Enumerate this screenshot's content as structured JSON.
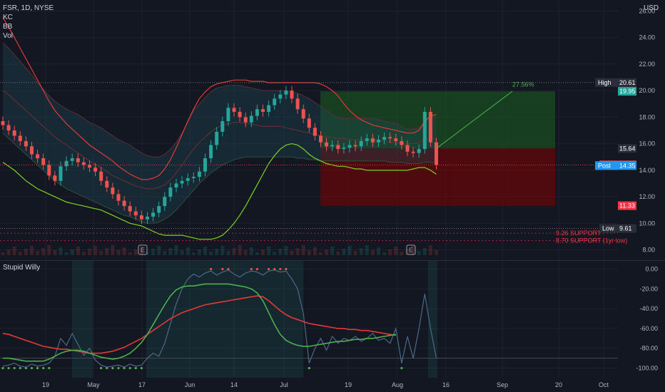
{
  "header": {
    "symbol_line": "FSR, 1D, NYSE",
    "indicators": [
      "KC",
      "BB",
      "Vol"
    ],
    "currency": "USD",
    "oscillator_title": "Stupid Willy"
  },
  "chart_data": [
    {
      "type": "candlestick",
      "title": "FSR, 1D, NYSE",
      "x_ticks": [
        "19",
        "May",
        "17",
        "Jun",
        "14",
        "Jul",
        "19",
        "Aug",
        "16",
        "Sep",
        "20",
        "Oct"
      ],
      "y_ticks": [
        8.0,
        10.0,
        12.0,
        14.0,
        16.0,
        18.0,
        20.0,
        22.0,
        24.0,
        26.0
      ],
      "y_tick_labels": [
        "8.00",
        "10.00",
        "12.00",
        "14.00",
        "16.00",
        "18.00",
        "20.00",
        "22.00",
        "24.00",
        "26.00"
      ],
      "ylim": [
        7.6,
        26.4
      ],
      "series": [
        {
          "name": "Close",
          "values": [
            17.4,
            17.0,
            16.6,
            16.2,
            15.8,
            15.2,
            14.9,
            14.4,
            13.6,
            13.2,
            14.3,
            14.7,
            14.9,
            14.6,
            14.4,
            14.2,
            13.9,
            13.2,
            12.7,
            12.2,
            11.7,
            11.3,
            10.9,
            10.6,
            10.3,
            10.5,
            10.8,
            11.3,
            12.0,
            12.7,
            13.0,
            13.2,
            13.4,
            13.5,
            13.9,
            14.9,
            15.9,
            16.9,
            17.7,
            18.7,
            18.4,
            18.0,
            17.6,
            18.1,
            18.6,
            18.4,
            18.9,
            19.4,
            19.7,
            20.0,
            19.4,
            18.6,
            17.9,
            17.2,
            16.6,
            16.1,
            15.8,
            15.9,
            15.6,
            15.7,
            15.9,
            15.8,
            16.2,
            16.4,
            16.1,
            16.3,
            16.5,
            16.4,
            16.2,
            15.9,
            15.4,
            15.3,
            15.6,
            18.4,
            16.1,
            14.4
          ]
        },
        {
          "name": "KC upper",
          "values": [
            23.6,
            23.2,
            22.7,
            22.2,
            21.7,
            21.2,
            20.6,
            20.1,
            19.6,
            19.2,
            18.9,
            18.6,
            18.4,
            18.2,
            17.9,
            17.6,
            17.4,
            17.2,
            16.9,
            16.6,
            16.3,
            16.1,
            15.9,
            15.6,
            15.3,
            15.1,
            15.0,
            15.0,
            15.2,
            15.6,
            16.1,
            16.8,
            17.6,
            18.5,
            19.0,
            19.5,
            19.9,
            20.2,
            20.3,
            20.4,
            20.4,
            20.4,
            20.3,
            20.2,
            20.1,
            20.0,
            20.0,
            20.0,
            20.0,
            20.0,
            19.9,
            19.8,
            19.6,
            19.4,
            19.1,
            18.8,
            18.5,
            18.2,
            18.0,
            17.9,
            17.9,
            17.9,
            17.9,
            17.9,
            17.9,
            17.8,
            17.7,
            17.6,
            17.5,
            17.3,
            17.1,
            17.1,
            17.2,
            17.6,
            18.0,
            18.1
          ]
        },
        {
          "name": "KC mid",
          "values": [
            20.0,
            19.7,
            19.3,
            18.9,
            18.5,
            18.1,
            17.7,
            17.3,
            16.9,
            16.5,
            16.2,
            15.9,
            15.6,
            15.3,
            15.0,
            14.7,
            14.4,
            14.2,
            13.9,
            13.6,
            13.4,
            13.2,
            13.0,
            12.8,
            12.7,
            12.6,
            12.6,
            12.7,
            12.9,
            13.3,
            13.8,
            14.4,
            15.0,
            15.6,
            16.1,
            16.5,
            16.9,
            17.2,
            17.4,
            17.5,
            17.6,
            17.6,
            17.5,
            17.5,
            17.4,
            17.3,
            17.3,
            17.3,
            17.3,
            17.2,
            17.1,
            17.0,
            16.9,
            16.8,
            16.7,
            16.6,
            16.5,
            16.5,
            16.4,
            16.4,
            16.3,
            16.3,
            16.3,
            16.3,
            16.3,
            16.2,
            16.2,
            16.1,
            16.1,
            16.0,
            16.0,
            16.0,
            16.1,
            16.3,
            16.4,
            16.3
          ]
        },
        {
          "name": "KC lower",
          "values": [
            16.8,
            16.4,
            16.0,
            15.6,
            15.2,
            14.8,
            14.4,
            14.0,
            13.6,
            13.2,
            12.9,
            12.6,
            12.4,
            12.2,
            12.0,
            11.8,
            11.6,
            11.4,
            11.2,
            11.0,
            10.8,
            10.6,
            10.5,
            10.3,
            10.1,
            10.0,
            10.0,
            10.1,
            10.3,
            10.6,
            11.0,
            11.5,
            12.0,
            12.5,
            13.0,
            13.4,
            13.8,
            14.1,
            14.4,
            14.6,
            14.8,
            14.9,
            15.0,
            15.0,
            15.0,
            15.0,
            15.0,
            15.0,
            15.0,
            15.0,
            15.0,
            14.9,
            14.9,
            14.8,
            14.8,
            14.7,
            14.7,
            14.7,
            14.7,
            14.7,
            14.7,
            14.7,
            14.7,
            14.7,
            14.7,
            14.7,
            14.7,
            14.6,
            14.6,
            14.6,
            14.5,
            14.5,
            14.5,
            14.6,
            14.6,
            14.5
          ]
        },
        {
          "name": "BB upper",
          "values": [
            25.5,
            24.8,
            24.0,
            23.2,
            22.4,
            21.6,
            20.8,
            20.0,
            19.2,
            18.5,
            18.0,
            17.5,
            17.1,
            16.7,
            16.3,
            15.9,
            15.6,
            15.3,
            15.0,
            14.7,
            14.3,
            14.0,
            13.7,
            13.5,
            13.3,
            13.3,
            13.4,
            13.6,
            14.1,
            14.8,
            15.7,
            16.7,
            17.7,
            18.6,
            19.4,
            19.9,
            20.3,
            20.5,
            20.6,
            20.7,
            20.8,
            20.8,
            20.8,
            20.7,
            20.7,
            20.7,
            20.6,
            20.6,
            20.6,
            20.6,
            20.6,
            20.6,
            20.6,
            20.6,
            20.6,
            20.5,
            20.3,
            20.0,
            19.6,
            19.0,
            18.5,
            18.1,
            17.8,
            17.6,
            17.4,
            17.3,
            17.2,
            17.1,
            17.0,
            16.9,
            16.8,
            16.8,
            17.0,
            17.7,
            18.1,
            18.2
          ]
        },
        {
          "name": "BB lower",
          "values": [
            14.6,
            14.3,
            14.0,
            13.6,
            13.2,
            12.9,
            12.6,
            12.4,
            12.2,
            12.0,
            11.8,
            11.6,
            11.5,
            11.4,
            11.3,
            11.2,
            11.1,
            11.0,
            10.8,
            10.6,
            10.4,
            10.2,
            10.0,
            9.9,
            9.8,
            9.6,
            9.4,
            9.2,
            9.1,
            9.1,
            9.1,
            9.1,
            9.0,
            8.9,
            8.8,
            8.8,
            8.8,
            8.9,
            9.1,
            9.5,
            10.0,
            10.6,
            11.3,
            12.1,
            12.9,
            13.7,
            14.5,
            15.1,
            15.6,
            15.9,
            16.0,
            15.9,
            15.6,
            15.2,
            14.9,
            14.7,
            14.5,
            14.4,
            14.3,
            14.3,
            14.2,
            14.1,
            14.1,
            14.0,
            14.0,
            14.0,
            14.0,
            14.0,
            14.0,
            14.0,
            14.0,
            14.1,
            14.2,
            14.2,
            14.0,
            13.7
          ]
        }
      ],
      "price_labels": [
        {
          "text": "High",
          "value": "20.61",
          "level": 20.61,
          "color": "#2a2e39"
        },
        {
          "text": "",
          "value": "19.95",
          "level": 19.95,
          "color": "#26a69a"
        },
        {
          "text": "",
          "value": "15.64",
          "level": 15.64,
          "color": "#2a2e39"
        },
        {
          "text": "FSR",
          "value": "14.40",
          "level": 14.4,
          "color": "#f7525f"
        },
        {
          "text": "Post",
          "value": "14.35",
          "level": 14.35,
          "color": "#2196f3"
        },
        {
          "text": "",
          "value": "11.33",
          "level": 11.33,
          "color": "#f23645"
        },
        {
          "text": "Low",
          "value": "9.61",
          "level": 9.61,
          "color": "#2a2e39"
        }
      ],
      "annotations": [
        {
          "text": "27.56%",
          "color": "#4caf50"
        },
        {
          "text": "9.26 SUPPORT",
          "level": 9.26,
          "color": "#f23645"
        },
        {
          "text": "8.70 SUPPORT (1yr low)",
          "level": 8.7,
          "color": "#f23645"
        }
      ],
      "earnings_markers": [
        "E",
        "E"
      ],
      "position": {
        "entry": 15.64,
        "target": 19.95,
        "stop": 11.33,
        "profit_color": "#1b5e20",
        "loss_color": "#7f0000"
      }
    },
    {
      "type": "line",
      "title": "Stupid Willy",
      "y_ticks": [
        0,
        -20,
        -40,
        -60,
        -80,
        -100
      ],
      "y_tick_labels": [
        "0.00",
        "-20.00",
        "-40.00",
        "-60.00",
        "-80.00",
        "-100.00"
      ],
      "ylim": [
        -104,
        4
      ],
      "series": [
        {
          "name": "Willy",
          "values": [
            -98,
            -97,
            -95,
            -98,
            -99,
            -96,
            -98,
            -97,
            -95,
            -88,
            -70,
            -77,
            -65,
            -76,
            -87,
            -80,
            -92,
            -97,
            -99,
            -98,
            -97,
            -99,
            -96,
            -98,
            -97,
            -90,
            -85,
            -88,
            -75,
            -55,
            -35,
            -20,
            -10,
            -5,
            -8,
            -4,
            -2,
            -6,
            -3,
            -1,
            -5,
            -8,
            -4,
            -2,
            -3,
            -6,
            -2,
            -1,
            -3,
            -2,
            -10,
            -20,
            -45,
            -95,
            -80,
            -70,
            -82,
            -68,
            -75,
            -70,
            -72,
            -68,
            -73,
            -70,
            -65,
            -72,
            -70,
            -75,
            -60,
            -95,
            -68,
            -90,
            -60,
            -25,
            -60,
            -90
          ]
        },
        {
          "name": "Fast",
          "values": [
            -90,
            -90,
            -91,
            -92,
            -93,
            -93,
            -93,
            -93,
            -91,
            -88,
            -85,
            -83,
            -82,
            -82,
            -83,
            -85,
            -87,
            -89,
            -90,
            -91,
            -90,
            -88,
            -85,
            -80,
            -74,
            -66,
            -56,
            -46,
            -36,
            -27,
            -21,
            -18,
            -17,
            -17,
            -16,
            -15,
            -15,
            -15,
            -15,
            -15,
            -16,
            -17,
            -18,
            -20,
            -24,
            -32,
            -44,
            -56,
            -66,
            -72,
            -75,
            -77,
            -78,
            -78,
            -77,
            -76,
            -75,
            -74,
            -73,
            -73,
            -72,
            -71,
            -71,
            -70,
            -70,
            -69,
            -68,
            -67,
            -66
          ]
        },
        {
          "name": "Slow",
          "values": [
            -65,
            -66,
            -68,
            -70,
            -72,
            -74,
            -76,
            -78,
            -79,
            -80,
            -81,
            -81,
            -82,
            -83,
            -84,
            -85,
            -85,
            -85,
            -84,
            -83,
            -81,
            -79,
            -76,
            -73,
            -70,
            -66,
            -62,
            -58,
            -54,
            -50,
            -47,
            -44,
            -42,
            -40,
            -38,
            -36,
            -35,
            -34,
            -33,
            -32,
            -31,
            -30,
            -29,
            -28,
            -27,
            -28,
            -32,
            -37,
            -42,
            -46,
            -49,
            -51,
            -53,
            -55,
            -56,
            -57,
            -58,
            -59,
            -60,
            -60,
            -61,
            -61,
            -62,
            -62,
            -63,
            -64,
            -65,
            -66,
            -67
          ]
        }
      ]
    }
  ]
}
